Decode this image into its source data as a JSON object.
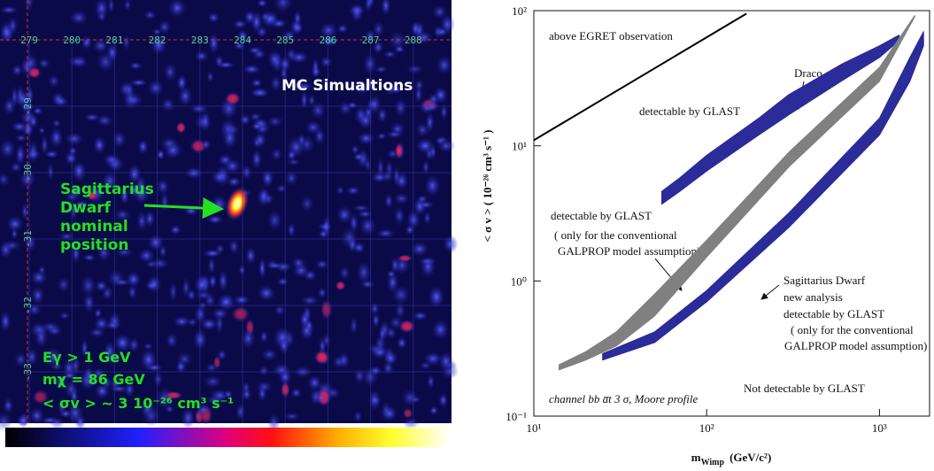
{
  "sky_map": {
    "title": "MC Simualtions",
    "source_label": [
      "Sagittarius",
      "Dwarf",
      "nominal",
      "position"
    ],
    "parameters": [
      "Eγ > 1 GeV",
      "mχ = 86 GeV",
      "< σv > ~ 3 10⁻²⁶ cm³ s⁻¹"
    ],
    "x_ticks": [
      "279",
      "280",
      "281",
      "282",
      "283",
      "284",
      "285",
      "286",
      "287",
      "288"
    ],
    "y_ticks": [
      "-29",
      "-30",
      "-31",
      "-32",
      "-33"
    ]
  },
  "chart_data": {
    "type": "band",
    "x_label": {
      "symbol": "m",
      "subscript": "Wimp",
      "unit": "(GeV/c²)"
    },
    "y_label": "< σ v > ( 10⁻²⁶ cm³ s⁻¹ )",
    "xlog": true,
    "ylog": true,
    "xlim": [
      10,
      1950
    ],
    "ylim": [
      0.1,
      100
    ],
    "xticks": [
      {
        "value": 10,
        "label": "10¹"
      },
      {
        "value": 100,
        "label": "10²"
      },
      {
        "value": 1000,
        "label": "10³"
      }
    ],
    "yticks": [
      {
        "value": 0.1,
        "label": "10⁻¹"
      },
      {
        "value": 1,
        "label": "10⁰"
      },
      {
        "value": 10,
        "label": "10¹"
      },
      {
        "value": 100,
        "label": "10²"
      }
    ],
    "line": {
      "color": "#000000",
      "x": [
        10,
        170
      ],
      "values": [
        11,
        95
      ]
    },
    "bands": [
      {
        "color": "#2b2b9a",
        "x": [
          55,
          70,
          100,
          200,
          300,
          600,
          1000,
          1300
        ],
        "y_low": [
          3.7,
          4.6,
          6.5,
          12,
          17,
          30,
          45,
          60
        ],
        "y_high": [
          4.6,
          5.8,
          8.5,
          16,
          24,
          40,
          55,
          66
        ]
      },
      {
        "color": "#808080",
        "x": [
          14,
          20,
          30,
          50,
          100,
          300,
          1000,
          1600
        ],
        "y_low": [
          0.22,
          0.26,
          0.33,
          0.55,
          1.5,
          7,
          30,
          90
        ],
        "y_high": [
          0.24,
          0.3,
          0.42,
          0.8,
          2.0,
          9,
          38,
          92
        ]
      },
      {
        "color": "#2b2b9a",
        "x": [
          25,
          50,
          100,
          300,
          1000,
          1500,
          1800
        ],
        "y_low": [
          0.26,
          0.35,
          0.7,
          2.5,
          12,
          30,
          55
        ],
        "y_high": [
          0.29,
          0.42,
          0.85,
          3.2,
          16,
          45,
          70
        ]
      }
    ],
    "annotations": [
      "above  EGRET observation",
      "detectable by GLAST",
      "Draco",
      "detectable by GLAST",
      "( only for the conventional",
      "GALPROP  model assumption)",
      "Sagittarius Dwarf",
      "new analysis",
      "detectable by GLAST",
      "( only for the conventional",
      "GALPROP  model assumption)",
      "Not detectable by GLAST",
      "channel bb a̅t 3 σ, Moore profile"
    ]
  }
}
